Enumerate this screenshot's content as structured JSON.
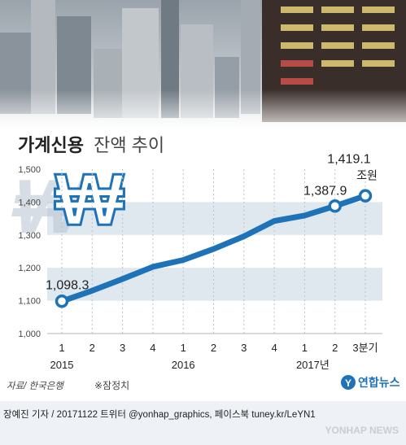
{
  "header": {
    "title_bold": "가계신용",
    "title_regular": "잔액 추이"
  },
  "chart_data": {
    "type": "line",
    "x": [
      "2015 Q1",
      "2015 Q2",
      "2015 Q3",
      "2015 Q4",
      "2016 Q1",
      "2016 Q2",
      "2016 Q3",
      "2016 Q4",
      "2017 Q1",
      "2017 Q2",
      "2017 Q3"
    ],
    "tick_labels": [
      "1",
      "2",
      "3",
      "4",
      "1",
      "2",
      "3",
      "4",
      "1",
      "2",
      "3분기"
    ],
    "year_labels": [
      {
        "text": "2015",
        "index": 0
      },
      {
        "text": "2016",
        "index": 4
      },
      {
        "text": "2017년",
        "index": 8
      }
    ],
    "values": [
      1098.3,
      1130.5,
      1166.0,
      1203.1,
      1223.7,
      1257.3,
      1295.8,
      1342.5,
      1359.1,
      1387.9,
      1419.1
    ],
    "ylim": [
      1000,
      1500
    ],
    "yticks": [
      "1,000",
      "1,100",
      "1,200",
      "1,300",
      "1,400",
      "1,500"
    ],
    "ytick_values": [
      1000,
      1100,
      1200,
      1300,
      1400,
      1500
    ],
    "labeled_points": [
      {
        "index": 0,
        "text": "1,098.3"
      },
      {
        "index": 9,
        "text": "1,387.9"
      },
      {
        "index": 10,
        "text": "1,419.1",
        "unit": "조원"
      }
    ],
    "line_color": "#1e73b8",
    "grid": true
  },
  "footer": {
    "source": "자료/ 한국은행",
    "note": "※잠정치",
    "credit": "장예진 기자 / 20171122  트위터 @yonhap_graphics, 페이스북 tuney.kr/LeYN1",
    "logo_text": "연합뉴스",
    "watermark": "YONHAP NEWS"
  },
  "colors": {
    "band": "#dfe7ef",
    "accent": "#1e73b8",
    "footer_bg": "#eef2f6"
  }
}
